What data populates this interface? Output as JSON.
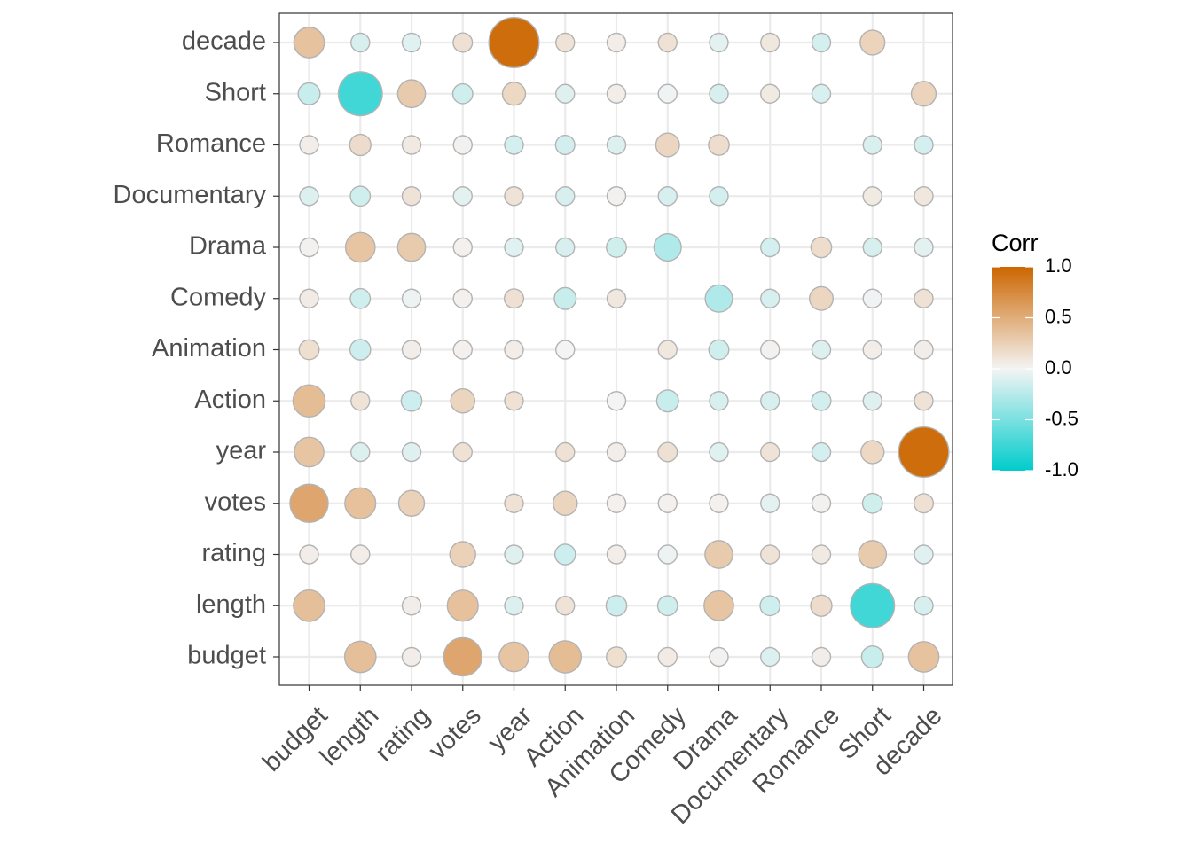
{
  "chart_data": {
    "type": "heatmap",
    "subtype": "correlation-circle-matrix",
    "labels": [
      "budget",
      "length",
      "rating",
      "votes",
      "year",
      "Action",
      "Animation",
      "Comedy",
      "Drama",
      "Documentary",
      "Romance",
      "Short",
      "decade"
    ],
    "matrix": [
      [
        null,
        0.37,
        0.05,
        0.55,
        0.33,
        0.39,
        0.15,
        0.06,
        0.02,
        -0.1,
        0.05,
        -0.18,
        0.35
      ],
      [
        0.37,
        null,
        0.05,
        0.36,
        -0.1,
        0.12,
        -0.16,
        -0.15,
        0.33,
        -0.15,
        0.17,
        -0.73,
        -0.12
      ],
      [
        0.05,
        0.05,
        null,
        0.25,
        -0.09,
        -0.16,
        0.05,
        -0.03,
        0.29,
        0.12,
        0.07,
        0.29,
        -0.08
      ],
      [
        0.55,
        0.36,
        0.25,
        null,
        0.13,
        0.22,
        0.03,
        0.03,
        0.03,
        -0.07,
        0.02,
        -0.15,
        0.14
      ],
      [
        0.33,
        -0.1,
        -0.09,
        0.13,
        null,
        0.13,
        0.05,
        0.14,
        -0.08,
        0.12,
        -0.13,
        0.2,
        0.95
      ],
      [
        0.39,
        0.12,
        -0.16,
        0.22,
        0.13,
        null,
        0.0,
        -0.18,
        -0.12,
        -0.12,
        -0.14,
        -0.09,
        0.12
      ],
      [
        0.15,
        -0.16,
        0.05,
        0.03,
        0.05,
        0.0,
        null,
        0.09,
        -0.15,
        0.02,
        -0.1,
        0.05,
        0.05
      ],
      [
        0.06,
        -0.15,
        -0.03,
        0.03,
        0.14,
        -0.18,
        0.09,
        null,
        -0.28,
        -0.12,
        0.21,
        -0.02,
        0.13
      ],
      [
        0.02,
        0.33,
        0.29,
        0.03,
        -0.08,
        -0.12,
        -0.15,
        -0.28,
        null,
        -0.13,
        0.16,
        -0.12,
        -0.07
      ],
      [
        -0.1,
        -0.15,
        0.12,
        -0.07,
        0.12,
        -0.12,
        0.02,
        -0.12,
        -0.13,
        null,
        null,
        0.07,
        0.09
      ],
      [
        0.05,
        0.17,
        0.07,
        0.02,
        -0.13,
        -0.14,
        -0.1,
        0.21,
        0.16,
        null,
        null,
        -0.11,
        -0.13
      ],
      [
        -0.18,
        -0.73,
        0.29,
        -0.15,
        0.2,
        -0.09,
        0.05,
        -0.02,
        -0.12,
        0.07,
        -0.11,
        null,
        0.23
      ],
      [
        0.35,
        -0.12,
        -0.08,
        0.14,
        0.95,
        0.12,
        0.05,
        0.13,
        -0.07,
        0.09,
        -0.13,
        0.23,
        null
      ]
    ],
    "xlabel": "",
    "ylabel": "",
    "grid": true,
    "legend": {
      "title": "Corr",
      "position": "right",
      "ticks": [
        "1.0",
        "0.5",
        "0.0",
        "-0.5",
        "-1.0"
      ],
      "tick_values": [
        1,
        0.5,
        0,
        -0.5,
        -1
      ],
      "range": [
        -1,
        1
      ],
      "colors": {
        "high": "#cc6600",
        "mid": "#f4f4f4",
        "low": "#00cccc"
      }
    }
  }
}
